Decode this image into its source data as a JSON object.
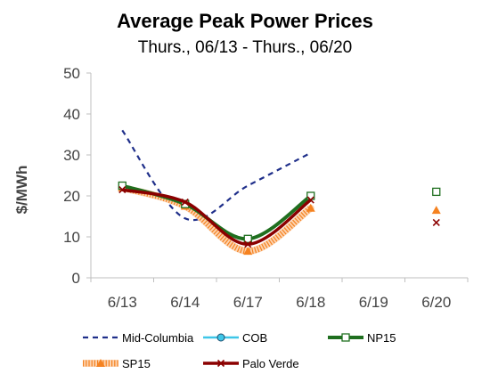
{
  "chart_data": {
    "type": "line",
    "title": "Average Peak Power Prices",
    "subtitle": "Thurs., 06/13 - Thurs., 06/20",
    "xlabel": "",
    "ylabel": "$/MWh",
    "categories": [
      "6/13",
      "6/14",
      "6/17",
      "6/18",
      "6/19",
      "6/20"
    ],
    "ylim": [
      0,
      50
    ],
    "yticks": [
      0,
      10,
      20,
      30,
      40,
      50
    ],
    "grid": false,
    "legend_position": "bottom",
    "series": [
      {
        "name": "Mid-Columbia",
        "color": "#1f2f8a",
        "style": "dashed",
        "marker": "none",
        "values": [
          36,
          14.5,
          22.5,
          30.5,
          null,
          null
        ]
      },
      {
        "name": "COB",
        "color": "#3ec6e8",
        "style": "solid",
        "marker": "circle",
        "values": [
          null,
          null,
          null,
          null,
          null,
          null
        ]
      },
      {
        "name": "NP15",
        "color": "#1f6f1f",
        "style": "solid",
        "marker": "square",
        "values": [
          22.5,
          18,
          9.5,
          20,
          null,
          21
        ]
      },
      {
        "name": "SP15",
        "color": "#f58220",
        "style": "dotted-band",
        "marker": "triangle",
        "values": [
          22,
          17.5,
          6.5,
          17,
          null,
          16.5
        ]
      },
      {
        "name": "Palo Verde",
        "color": "#8b0000",
        "style": "solid",
        "marker": "x",
        "values": [
          21.5,
          18.5,
          8.2,
          19,
          null,
          13.5
        ]
      }
    ]
  }
}
